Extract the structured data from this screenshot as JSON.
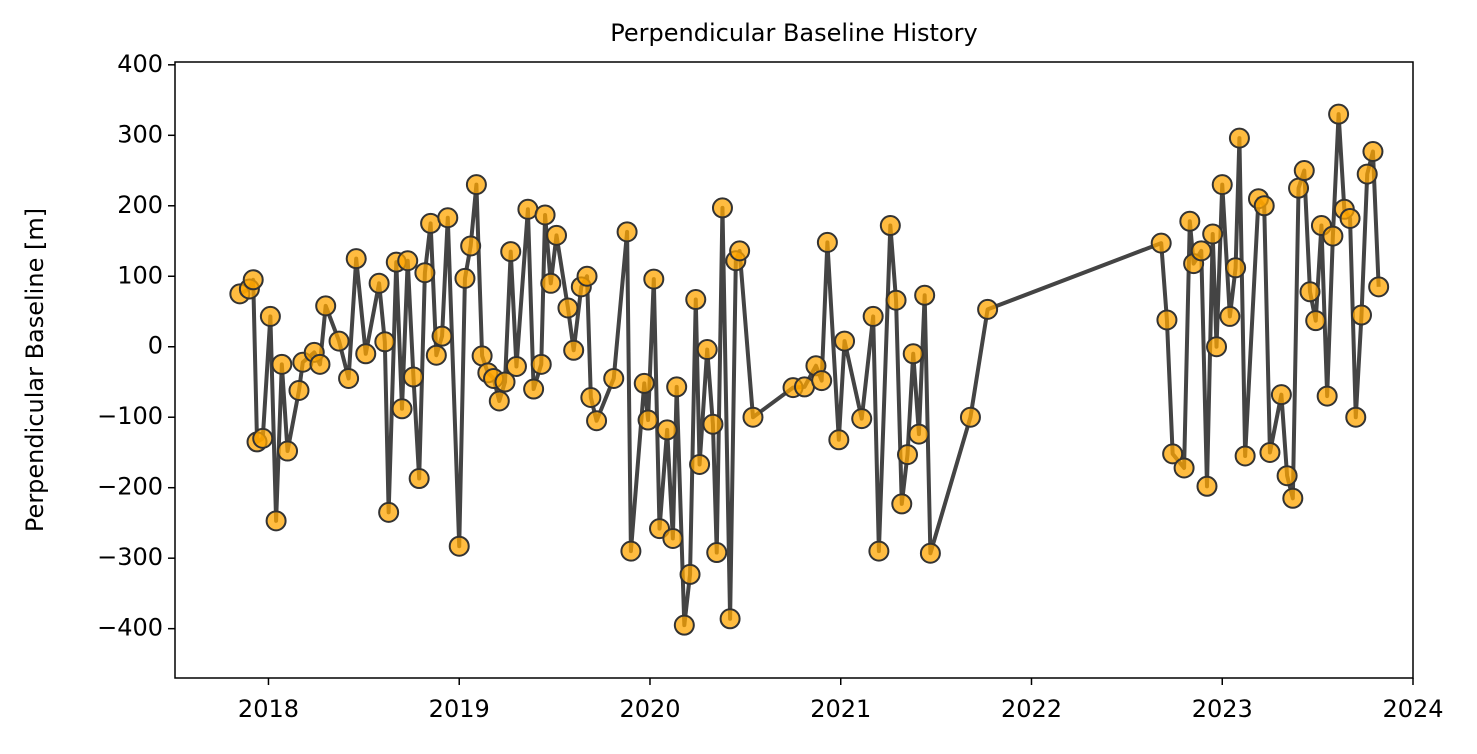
{
  "chart_data": {
    "type": "line",
    "title": "Perpendicular Baseline History",
    "ylabel": "Perpendicular Baseline [m]",
    "x": [
      2017.85,
      2017.9,
      2017.92,
      2017.94,
      2017.97,
      2018.01,
      2018.04,
      2018.07,
      2018.1,
      2018.16,
      2018.18,
      2018.24,
      2018.27,
      2018.3,
      2018.37,
      2018.42,
      2018.46,
      2018.51,
      2018.58,
      2018.61,
      2018.63,
      2018.67,
      2018.7,
      2018.73,
      2018.76,
      2018.79,
      2018.82,
      2018.85,
      2018.88,
      2018.91,
      2018.94,
      2019.0,
      2019.03,
      2019.06,
      2019.09,
      2019.12,
      2019.15,
      2019.18,
      2019.21,
      2019.24,
      2019.27,
      2019.3,
      2019.36,
      2019.39,
      2019.43,
      2019.45,
      2019.48,
      2019.51,
      2019.57,
      2019.6,
      2019.64,
      2019.67,
      2019.69,
      2019.72,
      2019.81,
      2019.88,
      2019.9,
      2019.97,
      2019.99,
      2020.02,
      2020.05,
      2020.09,
      2020.12,
      2020.14,
      2020.18,
      2020.21,
      2020.24,
      2020.26,
      2020.3,
      2020.33,
      2020.35,
      2020.38,
      2020.42,
      2020.45,
      2020.47,
      2020.54,
      2020.75,
      2020.81,
      2020.87,
      2020.9,
      2020.93,
      2020.99,
      2021.02,
      2021.11,
      2021.17,
      2021.2,
      2021.26,
      2021.29,
      2021.32,
      2021.35,
      2021.38,
      2021.41,
      2021.44,
      2021.47,
      2021.68,
      2021.77,
      2022.68,
      2022.71,
      2022.74,
      2022.8,
      2022.83,
      2022.85,
      2022.89,
      2022.92,
      2022.95,
      2022.97,
      2023.0,
      2023.04,
      2023.07,
      2023.09,
      2023.12,
      2023.19,
      2023.22,
      2023.25,
      2023.31,
      2023.34,
      2023.37,
      2023.4,
      2023.43,
      2023.46,
      2023.49,
      2023.52,
      2023.55,
      2023.58,
      2023.61,
      2023.64,
      2023.67,
      2023.7,
      2023.73,
      2023.76,
      2023.79,
      2023.82
    ],
    "series": [
      {
        "color": "#444444",
        "marker_color": "#ffa500",
        "marker_edge": "#333333",
        "values": [
          75,
          82,
          95,
          -135,
          -130,
          43,
          -247,
          -25,
          -148,
          -62,
          -22,
          -8,
          -25,
          58,
          8,
          -45,
          125,
          -10,
          90,
          7,
          -235,
          120,
          -88,
          122,
          -43,
          -187,
          105,
          175,
          -12,
          15,
          183,
          -283,
          97,
          143,
          230,
          -13,
          -37,
          -45,
          -77,
          -50,
          135,
          -28,
          195,
          -60,
          -25,
          187,
          90,
          158,
          55,
          -5,
          85,
          100,
          -72,
          -105,
          -45,
          163,
          -290,
          -52,
          -104,
          96,
          -258,
          -118,
          -272,
          -57,
          -395,
          -323,
          67,
          -167,
          -4,
          -110,
          -292,
          197,
          -386,
          122,
          136,
          -100,
          -58,
          -57,
          -27,
          -48,
          148,
          -132,
          8,
          -102,
          43,
          -290,
          172,
          66,
          -223,
          -153,
          -10,
          -124,
          73,
          -293,
          -100,
          53,
          147,
          38,
          -152,
          -172,
          178,
          118,
          136,
          -198,
          160,
          0,
          230,
          43,
          112,
          296,
          -155,
          210,
          200,
          -150,
          -68,
          -183,
          -215,
          225,
          250,
          78,
          37,
          172,
          -70,
          157,
          330,
          195,
          182,
          -100,
          45,
          245,
          277,
          85
        ]
      }
    ],
    "xlim": [
      2017.51,
      2024
    ],
    "xticks": [
      2018,
      2019,
      2020,
      2021,
      2022,
      2023,
      2024
    ],
    "ylim": [
      -470,
      404
    ],
    "yticks": [
      {
        "value": -400,
        "label": "−400"
      },
      {
        "value": -300,
        "label": "−300"
      },
      {
        "value": -200,
        "label": "−200"
      },
      {
        "value": -100,
        "label": "−100"
      },
      0,
      100,
      200,
      300,
      400
    ]
  }
}
